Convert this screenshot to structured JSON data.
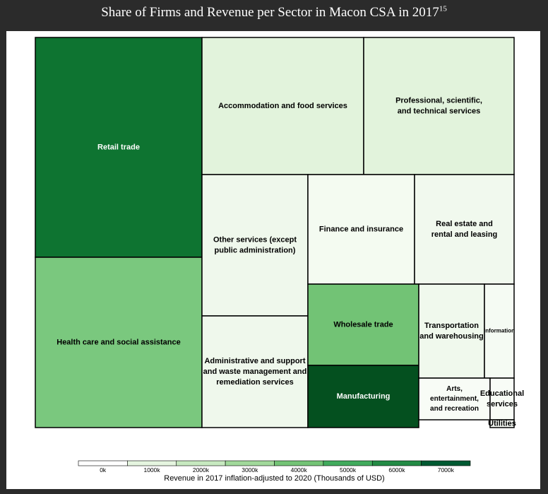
{
  "title": "Share of Firms and Revenue per Sector in Macon CSA in 2017",
  "title_footnote": "15",
  "chart_data": {
    "type": "treemap",
    "title": "Share of Firms and Revenue per Sector in Macon CSA in 2017",
    "size_measure": "Share of firms",
    "color_measure": "Revenue in 2017 inflation-adjusted to 2020 (Thousands of USD)",
    "sectors": [
      {
        "name": "Retail trade",
        "label_lines": [
          "Retail trade"
        ],
        "share_of_firms_pct": 13.3,
        "revenue_k": 6200,
        "color": "#0e7431",
        "text_color": "#ffffff"
      },
      {
        "name": "Health care and social assistance",
        "label_lines": [
          "Health care and social assistance"
        ],
        "share_of_firms_pct": 10.4,
        "revenue_k": 3300,
        "color": "#7ac87e",
        "text_color": "#000000"
      },
      {
        "name": "Accommodation and food services",
        "label_lines": [
          "Accommodation and food services"
        ],
        "share_of_firms_pct": 8.2,
        "revenue_k": 1400,
        "color": "#e2f3dc",
        "text_color": "#000000"
      },
      {
        "name": "Professional, scientific, and technical services",
        "label_lines": [
          "Professional, scientific,",
          "and technical services"
        ],
        "share_of_firms_pct": 7.9,
        "revenue_k": 1400,
        "color": "#e2f3dc",
        "text_color": "#000000"
      },
      {
        "name": "Other services (except public administration)",
        "label_lines": [
          "Other services (except",
          "public administration)"
        ],
        "share_of_firms_pct": 5.4,
        "revenue_k": 600,
        "color": "#eff8ec",
        "text_color": "#000000"
      },
      {
        "name": "Finance and insurance",
        "label_lines": [
          "Finance and insurance"
        ],
        "share_of_firms_pct": 5.1,
        "revenue_k": 400,
        "color": "#f4fbf1",
        "text_color": "#000000"
      },
      {
        "name": "Real estate and rental and leasing",
        "label_lines": [
          "Real estate and",
          "rental and leasing"
        ],
        "share_of_firms_pct": 5.0,
        "revenue_k": 400,
        "color": "#f1f9ee",
        "text_color": "#000000"
      },
      {
        "name": "Administrative and support and waste management and remediation services",
        "label_lines": [
          "Administrative and support",
          "and waste management and",
          "remediation services"
        ],
        "share_of_firms_pct": 5.4,
        "revenue_k": 600,
        "color": "#eff8ec",
        "text_color": "#000000"
      },
      {
        "name": "Wholesale trade",
        "label_lines": [
          "Wholesale trade"
        ],
        "share_of_firms_pct": 3.5,
        "revenue_k": 3800,
        "color": "#72c375",
        "text_color": "#000000"
      },
      {
        "name": "Manufacturing",
        "label_lines": [
          "Manufacturing"
        ],
        "share_of_firms_pct": 2.6,
        "revenue_k": 7000,
        "color": "#04501f",
        "text_color": "#ffffff"
      },
      {
        "name": "Transportation and warehousing",
        "label_lines": [
          "Transportation",
          "and warehousing"
        ],
        "share_of_firms_pct": 2.5,
        "revenue_k": 500,
        "color": "#f0f9ed",
        "text_color": "#000000"
      },
      {
        "name": "Information",
        "label_lines": [
          "Information"
        ],
        "share_of_firms_pct": 0.8,
        "revenue_k": 300,
        "color": "#f5fbf3",
        "text_color": "#000000"
      },
      {
        "name": "Arts, entertainment, and recreation",
        "label_lines": [
          "Arts,",
          "entertainment,",
          "and recreation"
        ],
        "share_of_firms_pct": 1.2,
        "revenue_k": 200,
        "color": "#f8fcf6",
        "text_color": "#000000"
      },
      {
        "name": "Educational services",
        "label_lines": [
          "Educational",
          "services"
        ],
        "share_of_firms_pct": 0.8,
        "revenue_k": 200,
        "color": "#f8fcf6",
        "text_color": "#000000"
      },
      {
        "name": "Utilities",
        "label_lines": [
          "Utilities"
        ],
        "share_of_firms_pct": 0.3,
        "revenue_k": 200,
        "color": "#f8fcf6",
        "text_color": "#000000"
      }
    ],
    "legend": {
      "title": "Revenue in 2017 inflation-adjusted to 2020 (Thousands of USD)",
      "ticks": [
        "0k",
        "1000k",
        "2000k",
        "3000k",
        "4000k",
        "5000k",
        "6000k",
        "7000k"
      ],
      "bins": [
        {
          "from": 0,
          "to": 1000,
          "color": "#ffffff"
        },
        {
          "from": 1000,
          "to": 2000,
          "color": "#e5f5e0"
        },
        {
          "from": 2000,
          "to": 3000,
          "color": "#c7e9c0"
        },
        {
          "from": 3000,
          "to": 4000,
          "color": "#a1d99b"
        },
        {
          "from": 4000,
          "to": 5000,
          "color": "#74c476"
        },
        {
          "from": 5000,
          "to": 6000,
          "color": "#41ab5d"
        },
        {
          "from": 6000,
          "to": 7000,
          "color": "#238b45"
        },
        {
          "from": 7000,
          "to": 8000,
          "color": "#005a32"
        }
      ],
      "range": [
        0,
        8000
      ]
    }
  }
}
